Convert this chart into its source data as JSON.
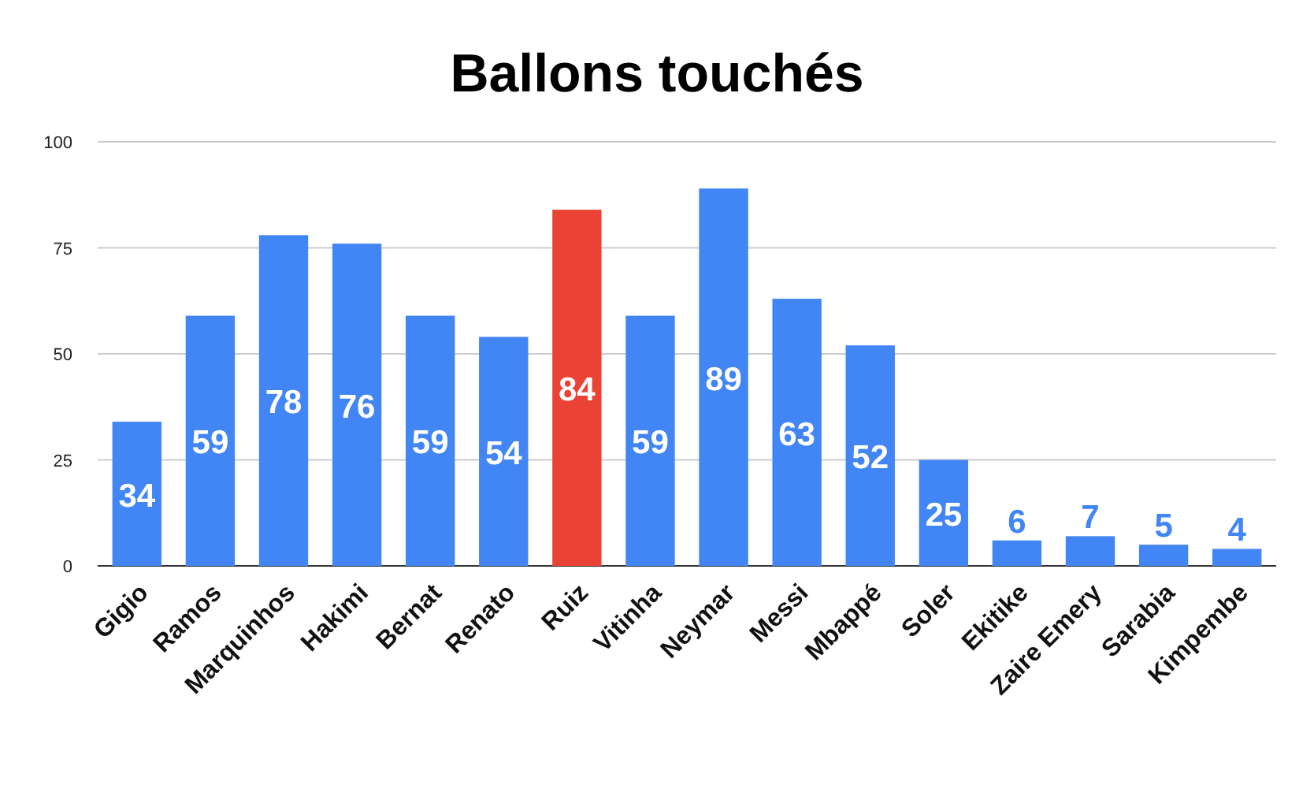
{
  "chart_data": {
    "type": "bar",
    "title": "Ballons touchés",
    "categories": [
      "Gigio",
      "Ramos",
      "Marquinhos",
      "Hakimi",
      "Bernat",
      "Renato",
      "Ruiz",
      "Vitinha",
      "Neymar",
      "Messi",
      "Mbappé",
      "Soler",
      "Ekitike",
      "Zaire Emery",
      "Sarabia",
      "Kimpembe"
    ],
    "values": [
      34,
      59,
      78,
      76,
      59,
      54,
      84,
      59,
      89,
      63,
      52,
      25,
      6,
      7,
      5,
      4
    ],
    "colors": [
      "#4285f4",
      "#4285f4",
      "#4285f4",
      "#4285f4",
      "#4285f4",
      "#4285f4",
      "#ea4335",
      "#4285f4",
      "#4285f4",
      "#4285f4",
      "#4285f4",
      "#4285f4",
      "#4285f4",
      "#4285f4",
      "#4285f4",
      "#4285f4"
    ],
    "ylim": [
      0,
      100
    ],
    "yticks": [
      0,
      25,
      50,
      75,
      100
    ],
    "grid": "y",
    "data_labels": true
  }
}
